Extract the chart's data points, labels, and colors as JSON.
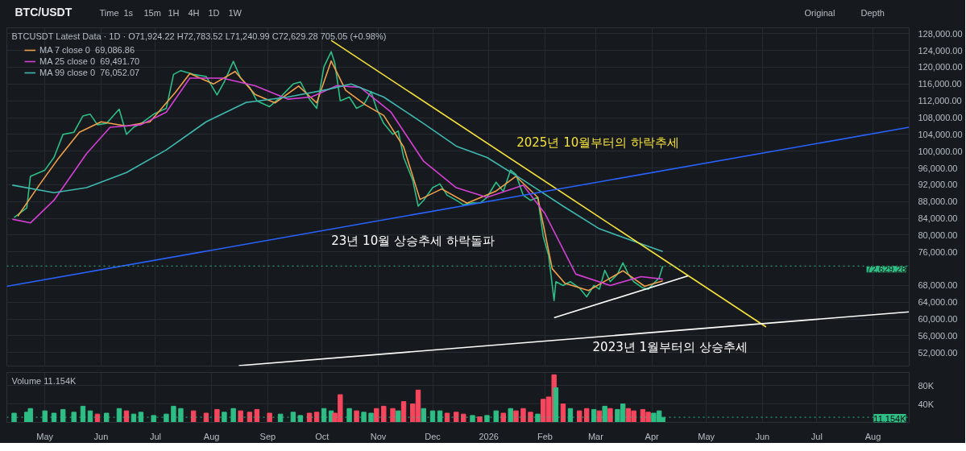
{
  "chart_data": [
    {
      "type": "line",
      "title": "BTC/USDT",
      "subtitle": "BTCUSDT Latest Data · 1D · O71,924.22 H72,783.52 L71,240.99 C72,629.28 705.05 (+0.98%)",
      "annotations": [
        "Time",
        "1s",
        "15m",
        "1H",
        "4H",
        "1D",
        "1W",
        "Original",
        "Depth",
        "2025년 10월부터의 하락추세",
        "23년 10월 상승추세 하락돌파",
        "2023년 1월부터의 상승추세"
      ],
      "xlim": [
        "2025-04-10",
        "2026-08-21"
      ],
      "ylim": [
        48800,
        129400
      ],
      "xticks": [
        {
          "value": "2025-05-01",
          "label": null
        },
        {
          "value": "2025-06-01",
          "label": null
        },
        {
          "value": "2025-07-01",
          "label": null
        },
        {
          "value": "2025-08-01",
          "label": null
        },
        {
          "value": "2025-09-01",
          "label": null
        },
        {
          "value": "2025-10-01",
          "label": null
        },
        {
          "value": "2025-11-01",
          "label": null
        },
        {
          "value": "2025-12-01",
          "label": null
        },
        {
          "value": "2026-01-01",
          "label": null
        },
        {
          "value": "2026-02-01",
          "label": null
        },
        {
          "value": "2026-03-01",
          "label": null
        },
        {
          "value": "2026-04-01",
          "label": null
        },
        {
          "value": "2026-05-01",
          "label": null
        },
        {
          "value": "2026-06-01",
          "label": null
        },
        {
          "value": "2026-07-01",
          "label": null
        },
        {
          "value": "2026-08-01",
          "label": null
        }
      ],
      "yticks": [
        {
          "value": 52000,
          "label": "52,000.00"
        },
        {
          "value": 56000,
          "label": "56,000.00"
        },
        {
          "value": 60000,
          "label": "60,000.00"
        },
        {
          "value": 64000,
          "label": "64,000.00"
        },
        {
          "value": 68000,
          "label": "68,000.00"
        },
        {
          "value": 76000,
          "label": "76,000.00"
        },
        {
          "value": 80000,
          "label": "80,000.00"
        },
        {
          "value": 84000,
          "label": "84,000.00"
        },
        {
          "value": 88000,
          "label": "88,000.00"
        },
        {
          "value": 92000,
          "label": "92,000.00"
        },
        {
          "value": 96000,
          "label": "96,000.00"
        },
        {
          "value": 100000,
          "label": "100,000.00"
        },
        {
          "value": 104000,
          "label": "104,000.00"
        },
        {
          "value": 108000,
          "label": "108,000.00"
        },
        {
          "value": 112000,
          "label": "112,000.00"
        },
        {
          "value": 116000,
          "label": "116,000.00"
        },
        {
          "value": 120000,
          "label": "120,000.00"
        },
        {
          "value": 124000,
          "label": "124,000.00"
        },
        {
          "value": 128000,
          "label": "128,000.00"
        }
      ],
      "tick_labels": "y",
      "grid": true,
      "legend": "top left",
      "ref_lines": [
        {
          "axis": "y",
          "value": 72629.28,
          "label": "72,629.28",
          "color": "#2ebd85",
          "line_style": "dotted"
        }
      ],
      "series": [
        {
          "color": "#2ebd85",
          "x": [
            "2025-04-14",
            "2025-04-21",
            "2025-04-23",
            "2025-05-01",
            "2025-05-06",
            "2025-05-11",
            "2025-05-17",
            "2025-05-22",
            "2025-05-26",
            "2025-05-30",
            "2025-06-04",
            "2025-06-11",
            "2025-06-15",
            "2025-06-19",
            "2025-06-23",
            "2025-06-30",
            "2025-07-07",
            "2025-07-11",
            "2025-07-15",
            "2025-07-22",
            "2025-07-29",
            "2025-08-04",
            "2025-08-08",
            "2025-08-13",
            "2025-08-17",
            "2025-08-22",
            "2025-08-26",
            "2025-09-02",
            "2025-09-08",
            "2025-09-15",
            "2025-09-19",
            "2025-09-24",
            "2025-09-28",
            "2025-10-02",
            "2025-10-06",
            "2025-10-08",
            "2025-10-11",
            "2025-10-16",
            "2025-10-20",
            "2025-10-24",
            "2025-10-28",
            "2025-10-31",
            "2025-11-04",
            "2025-11-09",
            "2025-11-12",
            "2025-11-15",
            "2025-11-20",
            "2025-11-23",
            "2025-11-26",
            "2025-12-01",
            "2025-12-05",
            "2025-12-09",
            "2025-12-14",
            "2025-12-18",
            "2025-12-23",
            "2025-12-27",
            "2025-12-31",
            "2026-01-05",
            "2026-01-09",
            "2026-01-13",
            "2026-01-16",
            "2026-01-20",
            "2026-01-24",
            "2026-01-28",
            "2026-01-31",
            "2026-02-03",
            "2026-02-06",
            "2026-02-07",
            "2026-02-11",
            "2026-02-15",
            "2026-02-20",
            "2026-02-24",
            "2026-02-28",
            "2026-03-03",
            "2026-03-06",
            "2026-03-09",
            "2026-03-13",
            "2026-03-16",
            "2026-03-19",
            "2026-03-22",
            "2026-03-27",
            "2026-03-30",
            "2026-04-02",
            "2026-04-05",
            "2026-04-07"
          ],
          "values": [
            84200,
            86500,
            94000,
            95500,
            98500,
            104000,
            104500,
            108400,
            108800,
            106300,
            106600,
            110000,
            104000,
            105700,
            106600,
            108800,
            110200,
            118300,
            119200,
            118300,
            117800,
            113400,
            116500,
            121400,
            117400,
            115200,
            112000,
            110600,
            112900,
            116000,
            116500,
            112400,
            110200,
            120100,
            123700,
            121000,
            112000,
            112900,
            110200,
            111100,
            114200,
            110200,
            106600,
            104000,
            104800,
            98500,
            93100,
            86900,
            88300,
            91300,
            92200,
            89500,
            88300,
            87200,
            87700,
            87600,
            89000,
            92600,
            90400,
            95500,
            94400,
            89500,
            88300,
            89000,
            79700,
            75200,
            64400,
            68900,
            68000,
            68900,
            67400,
            65300,
            68000,
            67100,
            71600,
            68900,
            70700,
            73400,
            70700,
            68900,
            67400,
            67100,
            68500,
            69800,
            72600
          ]
        },
        {
          "name": "MA 7 close 0  69,086.86",
          "color": "#f0a04b",
          "x": [
            "2025-04-16",
            "2025-04-28",
            "2025-05-08",
            "2025-05-20",
            "2025-06-01",
            "2025-06-15",
            "2025-06-28",
            "2025-07-12",
            "2025-07-20",
            "2025-08-02",
            "2025-08-14",
            "2025-08-25",
            "2025-09-05",
            "2025-09-18",
            "2025-09-28",
            "2025-10-06",
            "2025-10-14",
            "2025-10-25",
            "2025-11-04",
            "2025-11-15",
            "2025-11-24",
            "2025-12-06",
            "2025-12-20",
            "2026-01-05",
            "2026-01-16",
            "2026-01-28",
            "2026-02-05",
            "2026-02-12",
            "2026-02-25",
            "2026-03-08",
            "2026-03-16",
            "2026-03-28",
            "2026-04-07"
          ],
          "values": [
            84500,
            92000,
            98000,
            104500,
            107000,
            106000,
            107000,
            114000,
            118500,
            116000,
            119000,
            113500,
            111500,
            115500,
            111500,
            121500,
            114500,
            111000,
            108500,
            101000,
            88500,
            91000,
            87600,
            90500,
            94000,
            89000,
            72000,
            68500,
            66800,
            69500,
            71500,
            67800,
            69100
          ]
        },
        {
          "name": "MA 25 close 0  69,491.70",
          "color": "#d63fd6",
          "x": [
            "2025-04-13",
            "2025-04-23",
            "2025-05-06",
            "2025-05-24",
            "2025-06-06",
            "2025-06-23",
            "2025-07-07",
            "2025-07-20",
            "2025-08-07",
            "2025-08-25",
            "2025-09-12",
            "2025-09-25",
            "2025-10-09",
            "2025-10-22",
            "2025-11-08",
            "2025-11-26",
            "2025-12-14",
            "2025-12-31",
            "2026-01-20",
            "2026-02-01",
            "2026-02-18",
            "2026-03-09",
            "2026-03-26",
            "2026-04-07"
          ],
          "values": [
            83800,
            82900,
            88300,
            99400,
            105700,
            106300,
            109300,
            117400,
            117400,
            115600,
            112400,
            112900,
            115600,
            115200,
            109300,
            97600,
            91300,
            89000,
            91900,
            85100,
            70700,
            68000,
            70100,
            69500
          ]
        },
        {
          "name": "MA 99 close 0  76,052.07",
          "color": "#3fb8af",
          "x": [
            "2025-04-13",
            "2025-05-06",
            "2025-05-24",
            "2025-06-15",
            "2025-07-07",
            "2025-07-29",
            "2025-08-20",
            "2025-09-12",
            "2025-10-04",
            "2025-10-17",
            "2025-11-04",
            "2025-11-26",
            "2025-12-14",
            "2025-12-31",
            "2026-01-20",
            "2026-02-11",
            "2026-03-03",
            "2026-03-26",
            "2026-04-07"
          ],
          "values": [
            91900,
            90100,
            91300,
            94900,
            100300,
            107000,
            111600,
            112900,
            114700,
            116000,
            112900,
            106600,
            101200,
            98500,
            93100,
            86900,
            81500,
            77900,
            76100
          ]
        },
        {
          "color": "#f5e13a",
          "x": [
            "2025-10-06",
            "2026-06-03"
          ],
          "values": [
            126400,
            58100
          ]
        },
        {
          "color": "#2962ff",
          "x": [
            "2025-04-10",
            "2026-08-21"
          ],
          "values": [
            67800,
            105700
          ]
        },
        {
          "color": "#ffffff",
          "x": [
            "2025-08-16",
            "2026-08-21"
          ],
          "values": [
            48900,
            61700
          ]
        },
        {
          "color": "#ffffff",
          "x": [
            "2026-02-06",
            "2026-04-21"
          ],
          "values": [
            60300,
            70300
          ]
        }
      ]
    },
    {
      "type": "bar",
      "title": "Volume 11.154K",
      "xlim": [
        "2025-04-10",
        "2026-08-21"
      ],
      "ylim": [
        0,
        108000
      ],
      "xticks": [
        {
          "value": "2025-05-01",
          "label": "May"
        },
        {
          "value": "2025-06-01",
          "label": "Jun"
        },
        {
          "value": "2025-07-01",
          "label": "Jul"
        },
        {
          "value": "2025-08-01",
          "label": "Aug"
        },
        {
          "value": "2025-09-01",
          "label": "Sep"
        },
        {
          "value": "2025-10-01",
          "label": "Oct"
        },
        {
          "value": "2025-11-01",
          "label": "Nov"
        },
        {
          "value": "2025-12-01",
          "label": "Dec"
        },
        {
          "value": "2026-01-01",
          "label": "2026"
        },
        {
          "value": "2026-02-01",
          "label": "Feb"
        },
        {
          "value": "2026-03-01",
          "label": "Mar"
        },
        {
          "value": "2026-04-01",
          "label": "Apr"
        },
        {
          "value": "2026-05-01",
          "label": "May"
        },
        {
          "value": "2026-06-01",
          "label": "Jun"
        },
        {
          "value": "2026-07-01",
          "label": "Jul"
        },
        {
          "value": "2026-08-01",
          "label": "Aug"
        }
      ],
      "yticks": [
        {
          "value": 40000,
          "label": "40K"
        },
        {
          "value": 80000,
          "label": "80K"
        }
      ],
      "grid": true,
      "ref_lines": [
        {
          "axis": "y",
          "value": 11154,
          "label": "11.154K",
          "color": "#2ebd85",
          "line_style": "dotted"
        }
      ],
      "series": [
        {
          "x": [
            "2025-04-14",
            "2025-04-21",
            "2025-04-23",
            "2025-05-01",
            "2025-05-06",
            "2025-05-11",
            "2025-05-17",
            "2025-05-22",
            "2025-05-26",
            "2025-05-30",
            "2025-06-04",
            "2025-06-11",
            "2025-06-15",
            "2025-06-19",
            "2025-06-23",
            "2025-06-30",
            "2025-07-07",
            "2025-07-11",
            "2025-07-15",
            "2025-07-22",
            "2025-07-29",
            "2025-08-04",
            "2025-08-08",
            "2025-08-13",
            "2025-08-17",
            "2025-08-22",
            "2025-08-26",
            "2025-09-02",
            "2025-09-08",
            "2025-09-15",
            "2025-09-19",
            "2025-09-24",
            "2025-09-28",
            "2025-10-02",
            "2025-10-06",
            "2025-10-08",
            "2025-10-11",
            "2025-10-16",
            "2025-10-20",
            "2025-10-24",
            "2025-10-28",
            "2025-10-31",
            "2025-11-04",
            "2025-11-09",
            "2025-11-12",
            "2025-11-15",
            "2025-11-20",
            "2025-11-23",
            "2025-11-26",
            "2025-12-01",
            "2025-12-05",
            "2025-12-09",
            "2025-12-14",
            "2025-12-18",
            "2025-12-23",
            "2025-12-27",
            "2025-12-31",
            "2026-01-05",
            "2026-01-09",
            "2026-01-13",
            "2026-01-16",
            "2026-01-20",
            "2026-01-24",
            "2026-01-28",
            "2026-01-31",
            "2026-02-03",
            "2026-02-06",
            "2026-02-07",
            "2026-02-11",
            "2026-02-15",
            "2026-02-20",
            "2026-02-24",
            "2026-02-28",
            "2026-03-03",
            "2026-03-06",
            "2026-03-09",
            "2026-03-13",
            "2026-03-16",
            "2026-03-19",
            "2026-03-22",
            "2026-03-27",
            "2026-03-30",
            "2026-04-02",
            "2026-04-05",
            "2026-04-07"
          ],
          "values": [
            20000,
            22000,
            30000,
            25000,
            20000,
            28000,
            22000,
            35000,
            25000,
            18000,
            20000,
            30000,
            25000,
            18000,
            22000,
            15000,
            18000,
            35000,
            30000,
            25000,
            20000,
            28000,
            22000,
            30000,
            25000,
            22000,
            28000,
            20000,
            18000,
            22000,
            15000,
            20000,
            22000,
            30000,
            25000,
            20000,
            60000,
            30000,
            25000,
            22000,
            20000,
            30000,
            35000,
            30000,
            25000,
            45000,
            40000,
            70000,
            30000,
            25000,
            25000,
            20000,
            22000,
            18000,
            15000,
            12000,
            15000,
            25000,
            20000,
            30000,
            25000,
            30000,
            22000,
            18000,
            50000,
            55000,
            103000,
            75000,
            40000,
            30000,
            25000,
            30000,
            28000,
            25000,
            35000,
            30000,
            28000,
            40000,
            30000,
            25000,
            28000,
            22000,
            20000,
            25000,
            11000
          ],
          "colors": [
            "#2ebd85",
            "#2ebd85",
            "#2ebd85",
            "#2ebd85",
            "#2ebd85",
            "#2ebd85",
            "#2ebd85",
            "#2ebd85",
            "#2ebd85",
            "#f6465d",
            "#2ebd85",
            "#2ebd85",
            "#f6465d",
            "#2ebd85",
            "#2ebd85",
            "#2ebd85",
            "#2ebd85",
            "#2ebd85",
            "#2ebd85",
            "#f6465d",
            "#f6465d",
            "#f6465d",
            "#2ebd85",
            "#2ebd85",
            "#f6465d",
            "#f6465d",
            "#f6465d",
            "#f6465d",
            "#2ebd85",
            "#2ebd85",
            "#2ebd85",
            "#f6465d",
            "#f6465d",
            "#2ebd85",
            "#2ebd85",
            "#f6465d",
            "#f6465d",
            "#2ebd85",
            "#f6465d",
            "#2ebd85",
            "#2ebd85",
            "#f6465d",
            "#f6465d",
            "#f6465d",
            "#2ebd85",
            "#f6465d",
            "#f6465d",
            "#f6465d",
            "#2ebd85",
            "#2ebd85",
            "#2ebd85",
            "#f6465d",
            "#f6465d",
            "#f6465d",
            "#2ebd85",
            "#f6465d",
            "#2ebd85",
            "#2ebd85",
            "#f6465d",
            "#2ebd85",
            "#f6465d",
            "#f6465d",
            "#f6465d",
            "#2ebd85",
            "#f6465d",
            "#f6465d",
            "#f6465d",
            "#2ebd85",
            "#f6465d",
            "#2ebd85",
            "#f6465d",
            "#f6465d",
            "#2ebd85",
            "#f6465d",
            "#2ebd85",
            "#f6465d",
            "#2ebd85",
            "#2ebd85",
            "#f6465d",
            "#f6465d",
            "#f6465d",
            "#f6465d",
            "#2ebd85",
            "#2ebd85",
            "#2ebd85"
          ]
        }
      ]
    }
  ]
}
